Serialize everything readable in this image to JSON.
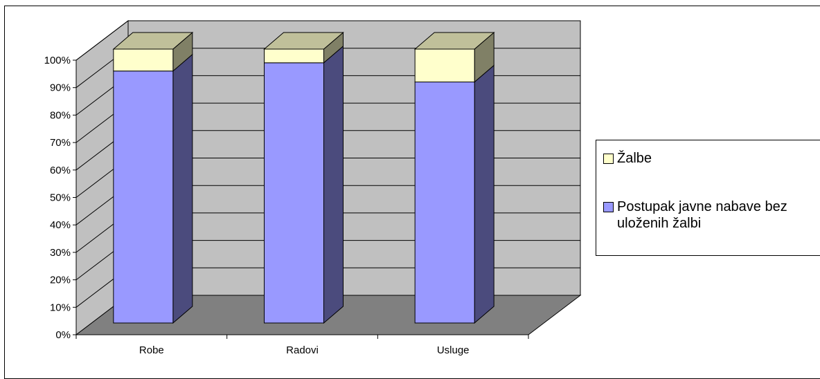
{
  "chart_data": {
    "type": "bar",
    "stacked": true,
    "percent_stacked": true,
    "three_d": true,
    "categories": [
      "Robe",
      "Radovi",
      "Usluge"
    ],
    "series": [
      {
        "name": "Postupak javne nabave bez uloženih žalbi",
        "values": [
          92,
          95,
          88
        ],
        "color": "#9999ff"
      },
      {
        "name": "Žalbe",
        "values": [
          8,
          5,
          12
        ],
        "color": "#ffffcc"
      }
    ],
    "y_ticks": [
      "0%",
      "10%",
      "20%",
      "30%",
      "40%",
      "50%",
      "60%",
      "70%",
      "80%",
      "90%",
      "100%"
    ],
    "ylim": [
      0,
      100
    ],
    "grid": true,
    "legend_position": "right",
    "colors": {
      "wall": "#c0c0c0",
      "floor": "#808080",
      "series1_side": "#4b4b7d",
      "series2_top": "#c0c09a",
      "series2_side": "#808066"
    }
  },
  "legend": {
    "items": [
      {
        "label": "Žalbe",
        "color": "#ffffcc"
      },
      {
        "label": "Postupak javne nabave bez uloženih žalbi",
        "color": "#9999ff"
      }
    ]
  }
}
